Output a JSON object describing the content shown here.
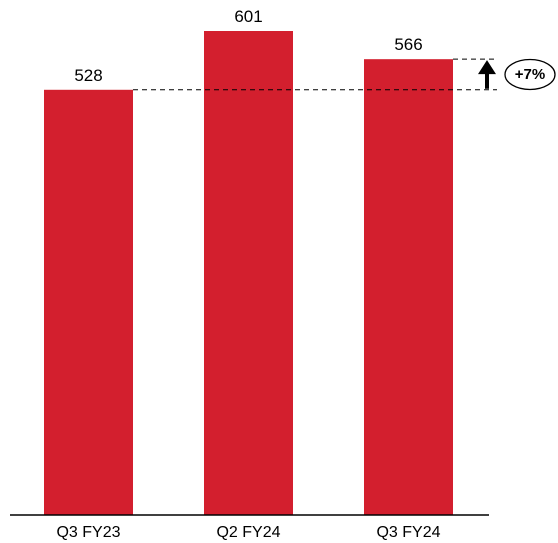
{
  "chart_data": {
    "type": "bar",
    "categories": [
      "Q3 FY23",
      "Q2 FY24",
      "Q3 FY24"
    ],
    "values": [
      528,
      601,
      566
    ],
    "title": "",
    "xlabel": "",
    "ylabel": "",
    "ylim": [
      0,
      601
    ],
    "grid": false,
    "bar_color": "#D31F2E",
    "annotation": {
      "from_category": "Q3 FY23",
      "to_category": "Q3 FY24",
      "direction": "up",
      "label": "+7%"
    }
  }
}
